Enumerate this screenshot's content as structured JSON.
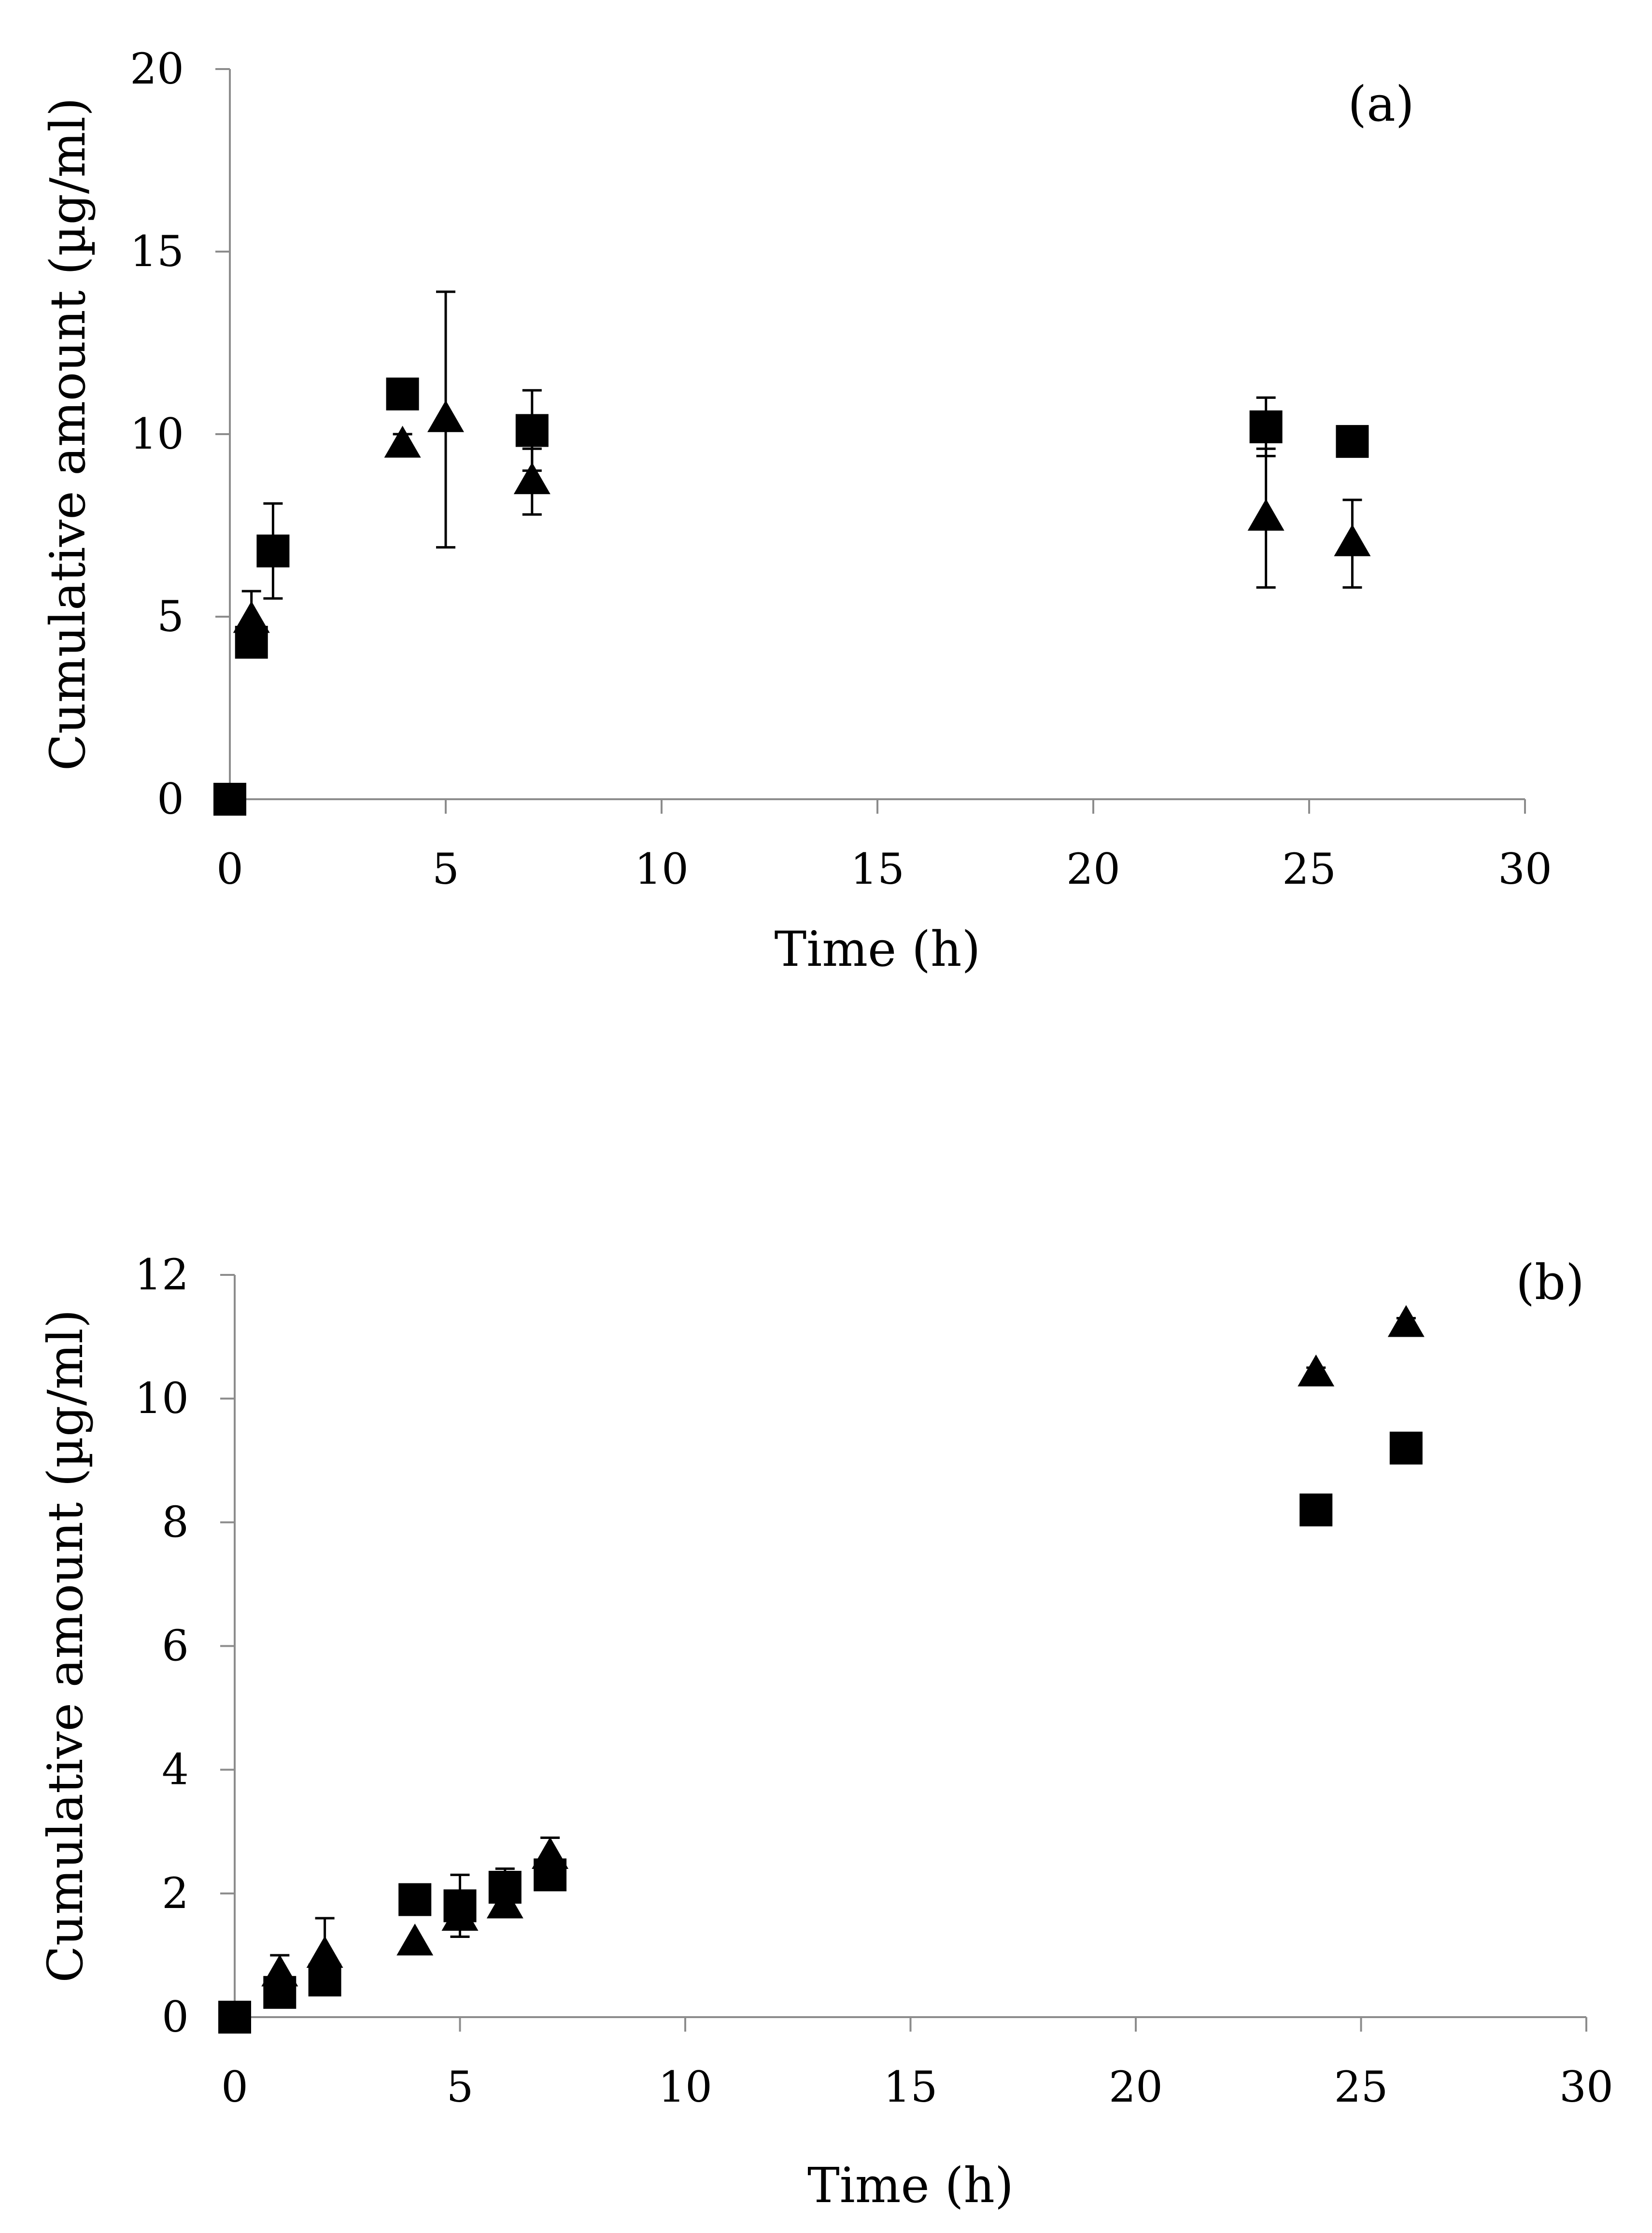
{
  "chart_data": [
    {
      "type": "scatter",
      "panel_label": "(a)",
      "xlabel": "Time (h)",
      "ylabel": "Cumulative amount (µg/ml)",
      "xlim": [
        0,
        30
      ],
      "ylim": [
        0,
        20
      ],
      "x_ticks": [
        "0",
        "5",
        "10",
        "15",
        "20",
        "25",
        "30"
      ],
      "y_ticks": [
        "0",
        "5",
        "10",
        "15",
        "20"
      ],
      "series": [
        {
          "name": "square",
          "marker": "square",
          "points": [
            {
              "x": 0,
              "y": 0,
              "err": 0
            },
            {
              "x": 0.5,
              "y": 4.3,
              "err": 0
            },
            {
              "x": 1,
              "y": 6.8,
              "err": 1.3
            },
            {
              "x": 4,
              "y": 11.1,
              "err": 0
            },
            {
              "x": 7,
              "y": 10.1,
              "err": 1.1
            },
            {
              "x": 24,
              "y": 10.2,
              "err": 0.8
            },
            {
              "x": 26,
              "y": 9.8,
              "err": 0
            }
          ]
        },
        {
          "name": "triangle",
          "marker": "triangle",
          "points": [
            {
              "x": 0.5,
              "y": 4.9,
              "err": 0.8
            },
            {
              "x": 4,
              "y": 9.7,
              "err": 0.3
            },
            {
              "x": 5,
              "y": 10.4,
              "err": 3.5
            },
            {
              "x": 7,
              "y": 8.7,
              "err": 0.9
            },
            {
              "x": 24,
              "y": 7.7,
              "err": 1.9
            },
            {
              "x": 26,
              "y": 7.0,
              "err": 1.2
            }
          ]
        }
      ]
    },
    {
      "type": "scatter",
      "panel_label": "(b)",
      "xlabel": "Time (h)",
      "ylabel": "Cumulative amount (µg/ml)",
      "xlim": [
        0,
        30
      ],
      "ylim": [
        0,
        12
      ],
      "x_ticks": [
        "0",
        "5",
        "10",
        "15",
        "20",
        "25",
        "30"
      ],
      "y_ticks": [
        "0",
        "2",
        "4",
        "6",
        "8",
        "10",
        "12"
      ],
      "series": [
        {
          "name": "square",
          "marker": "square",
          "points": [
            {
              "x": 0,
              "y": 0,
              "err": 0
            },
            {
              "x": 1,
              "y": 0.4,
              "err": 0
            },
            {
              "x": 2,
              "y": 0.6,
              "err": 0
            },
            {
              "x": 4,
              "y": 1.9,
              "err": 0
            },
            {
              "x": 5,
              "y": 1.8,
              "err": 0.5
            },
            {
              "x": 6,
              "y": 2.1,
              "err": 0.3
            },
            {
              "x": 7,
              "y": 2.3,
              "err": 0
            },
            {
              "x": 24,
              "y": 8.2,
              "err": 0
            },
            {
              "x": 26,
              "y": 9.2,
              "err": 0
            }
          ]
        },
        {
          "name": "triangle",
          "marker": "triangle",
          "points": [
            {
              "x": 1,
              "y": 0.7,
              "err": 0.3
            },
            {
              "x": 2,
              "y": 1.0,
              "err": 0.6
            },
            {
              "x": 4,
              "y": 1.2,
              "err": 0
            },
            {
              "x": 5,
              "y": 1.6,
              "err": 0
            },
            {
              "x": 6,
              "y": 1.8,
              "err": 0
            },
            {
              "x": 7,
              "y": 2.6,
              "err": 0.3
            },
            {
              "x": 24,
              "y": 10.4,
              "err": 0.1
            },
            {
              "x": 26,
              "y": 11.2,
              "err": 0.1
            }
          ]
        }
      ]
    }
  ]
}
